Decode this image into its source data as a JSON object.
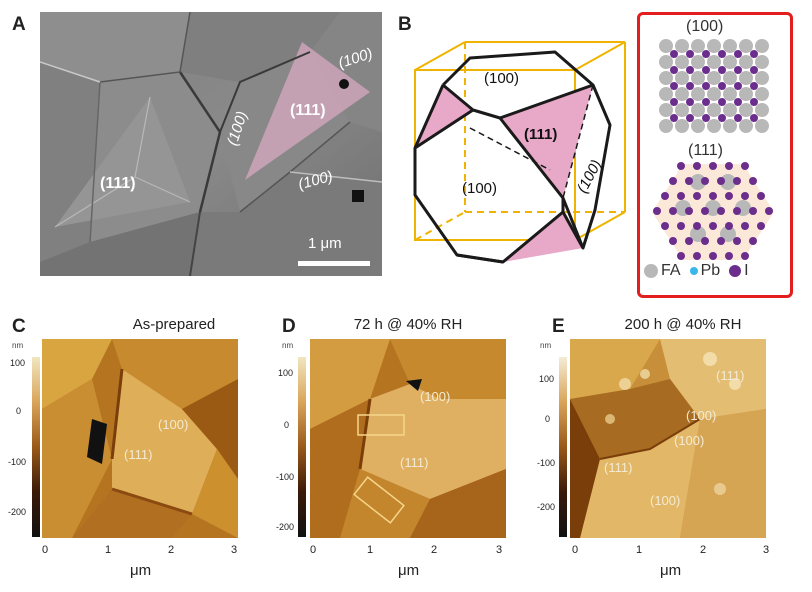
{
  "panels": {
    "A": {
      "letter": "A",
      "labels": {
        "f111_big": "(111)",
        "f111_left": "(111)",
        "f100_top": "(100)",
        "f100_mid": "(100)",
        "f100_right": "(100)"
      },
      "scalebar": "1 μm"
    },
    "B": {
      "letter": "B",
      "crystal_labels": {
        "top": "(100)",
        "front": "(100)",
        "tri": "(111)",
        "right": "(100)"
      },
      "lattice_100": "(100)",
      "lattice_111": "(111)",
      "legend": [
        {
          "symbol": "FA",
          "color": "#b8b8b8"
        },
        {
          "symbol": "Pb",
          "color": "#39b7ea"
        },
        {
          "symbol": "I",
          "color": "#6b2e8c"
        }
      ],
      "box_color": "#e31e1e"
    },
    "C": {
      "letter": "C",
      "title": "As-prepared",
      "facets": [
        "(100)",
        "(111)"
      ],
      "colorbar": {
        "unit": "nm",
        "ticks": [
          "100",
          "0",
          "-100",
          "-200"
        ]
      },
      "xticks": [
        "0",
        "1",
        "2",
        "3"
      ],
      "xlabel": "μm"
    },
    "D": {
      "letter": "D",
      "title": "72 h @ 40% RH",
      "facets": [
        "(100)",
        "(111)"
      ],
      "colorbar": {
        "unit": "nm",
        "ticks": [
          "100",
          "0",
          "-100",
          "-200"
        ]
      },
      "xticks": [
        "0",
        "1",
        "2",
        "3"
      ],
      "xlabel": "μm"
    },
    "E": {
      "letter": "E",
      "title": "200 h @ 40% RH",
      "facets": [
        "(111)",
        "(100)",
        "(100)",
        "(111)",
        "(100)"
      ],
      "colorbar": {
        "unit": "nm",
        "ticks": [
          "100",
          "0",
          "-100",
          "-200"
        ]
      },
      "xticks": [
        "0",
        "1",
        "2",
        "3"
      ],
      "xlabel": "μm"
    }
  }
}
